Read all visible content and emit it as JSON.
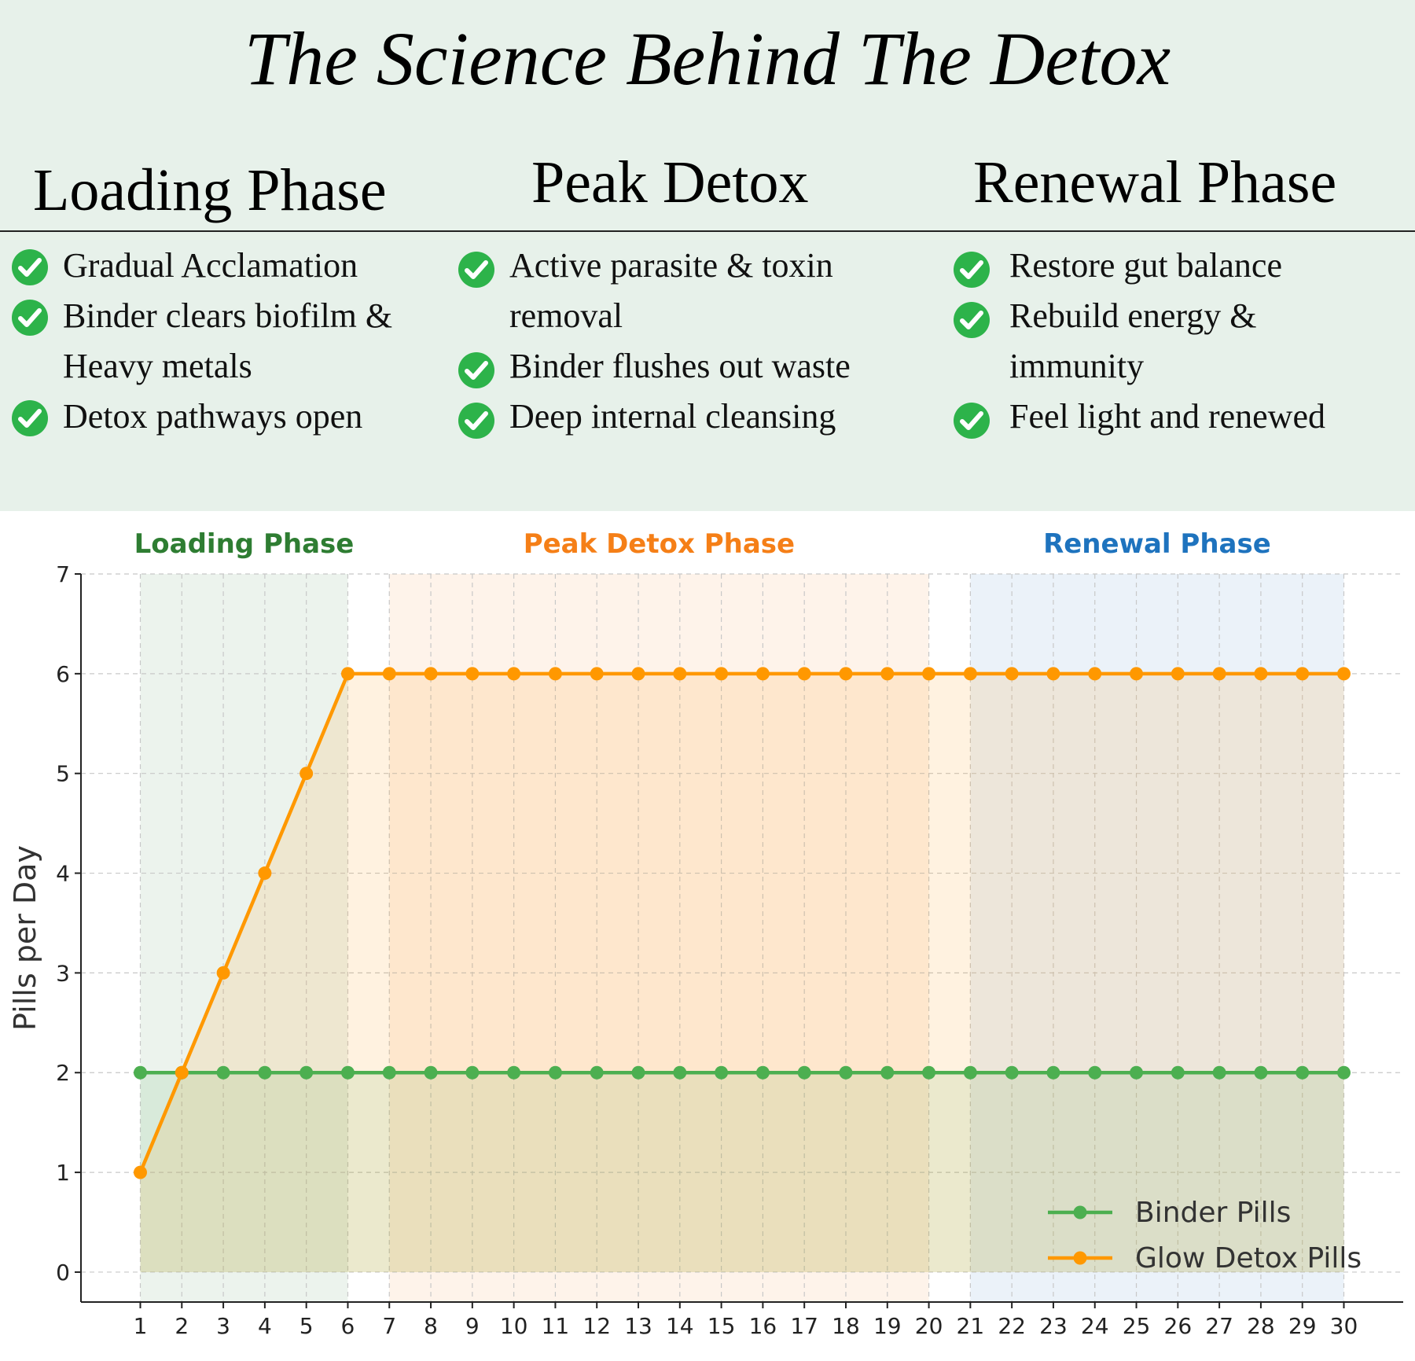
{
  "header": {
    "title": "The Science Behind The Detox",
    "phases": [
      {
        "name": "Loading Phase",
        "items": [
          "Gradual Acclamation",
          "Binder clears biofilm & Heavy metals",
          "Detox pathways open"
        ]
      },
      {
        "name": "Peak Detox",
        "items": [
          "Active parasite & toxin removal",
          "Binder flushes out waste",
          "Deep internal cleansing"
        ]
      },
      {
        "name": "Renewal Phase",
        "items": [
          "Restore gut balance",
          "Rebuild energy & immunity",
          "Feel light and renewed"
        ]
      }
    ],
    "check_icon": "check-circle-icon",
    "check_color": "#2db34a",
    "panel_color": "#e7f1ea"
  },
  "chart_data": {
    "type": "line",
    "x": [
      1,
      2,
      3,
      4,
      5,
      6,
      7,
      8,
      9,
      10,
      11,
      12,
      13,
      14,
      15,
      16,
      17,
      18,
      19,
      20,
      21,
      22,
      23,
      24,
      25,
      26,
      27,
      28,
      29,
      30
    ],
    "series": [
      {
        "name": "Binder Pills",
        "color": "#4caf50",
        "values": [
          2,
          2,
          2,
          2,
          2,
          2,
          2,
          2,
          2,
          2,
          2,
          2,
          2,
          2,
          2,
          2,
          2,
          2,
          2,
          2,
          2,
          2,
          2,
          2,
          2,
          2,
          2,
          2,
          2,
          2
        ]
      },
      {
        "name": "Glow Detox Pills",
        "color": "#ff9800",
        "values": [
          1,
          2,
          3,
          4,
          5,
          6,
          6,
          6,
          6,
          6,
          6,
          6,
          6,
          6,
          6,
          6,
          6,
          6,
          6,
          6,
          6,
          6,
          6,
          6,
          6,
          6,
          6,
          6,
          6,
          6
        ]
      }
    ],
    "ylabel": "Pills per Day",
    "xlabel": "",
    "ylim": [
      -0.3,
      7
    ],
    "yticks": [
      0,
      1,
      2,
      3,
      4,
      5,
      6,
      7
    ],
    "grid": true,
    "legend": "bottom-right",
    "phase_bands": [
      {
        "label": "Loading Phase",
        "start": 1,
        "end": 6,
        "color": "#2e7d32"
      },
      {
        "label": "Peak Detox Phase",
        "start": 7,
        "end": 20,
        "color": "#f57f17"
      },
      {
        "label": "Renewal Phase",
        "start": 21,
        "end": 30,
        "color": "#1e73be"
      }
    ]
  }
}
